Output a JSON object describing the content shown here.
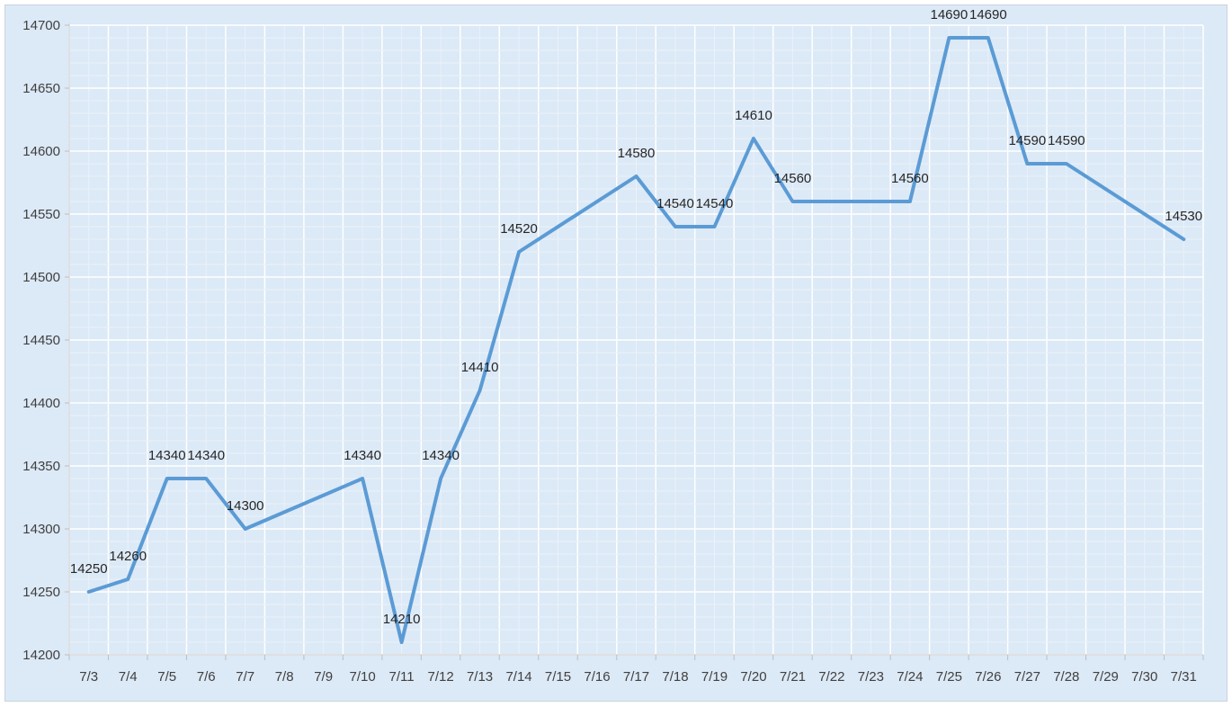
{
  "chart_data": {
    "type": "line",
    "categories": [
      "7/3",
      "7/4",
      "7/5",
      "7/6",
      "7/7",
      "7/8",
      "7/9",
      "7/10",
      "7/11",
      "7/12",
      "7/13",
      "7/14",
      "7/15",
      "7/16",
      "7/17",
      "7/18",
      "7/19",
      "7/20",
      "7/21",
      "7/22",
      "7/23",
      "7/24",
      "7/25",
      "7/26",
      "7/27",
      "7/28",
      "7/29",
      "7/30",
      "7/31"
    ],
    "points": [
      {
        "x": "7/3",
        "y": 14250
      },
      {
        "x": "7/4",
        "y": 14260
      },
      {
        "x": "7/5",
        "y": 14340
      },
      {
        "x": "7/6",
        "y": 14340
      },
      {
        "x": "7/7",
        "y": 14300
      },
      {
        "x": "7/10",
        "y": 14340
      },
      {
        "x": "7/11",
        "y": 14210
      },
      {
        "x": "7/12",
        "y": 14340
      },
      {
        "x": "7/13",
        "y": 14410
      },
      {
        "x": "7/14",
        "y": 14520
      },
      {
        "x": "7/17",
        "y": 14580
      },
      {
        "x": "7/18",
        "y": 14540
      },
      {
        "x": "7/19",
        "y": 14540
      },
      {
        "x": "7/20",
        "y": 14610
      },
      {
        "x": "7/21",
        "y": 14560
      },
      {
        "x": "7/24",
        "y": 14560
      },
      {
        "x": "7/25",
        "y": 14690
      },
      {
        "x": "7/26",
        "y": 14690
      },
      {
        "x": "7/27",
        "y": 14590
      },
      {
        "x": "7/28",
        "y": 14590
      },
      {
        "x": "7/31",
        "y": 14530
      }
    ],
    "y_ticks": [
      14200,
      14250,
      14300,
      14350,
      14400,
      14450,
      14500,
      14550,
      14600,
      14650,
      14700
    ],
    "ylim": [
      14200,
      14700
    ],
    "title": "",
    "xlabel": "",
    "ylabel": "",
    "grid": true,
    "legend": "none",
    "line_color": "#5b9bd5",
    "background_color": "#dce9f6"
  }
}
